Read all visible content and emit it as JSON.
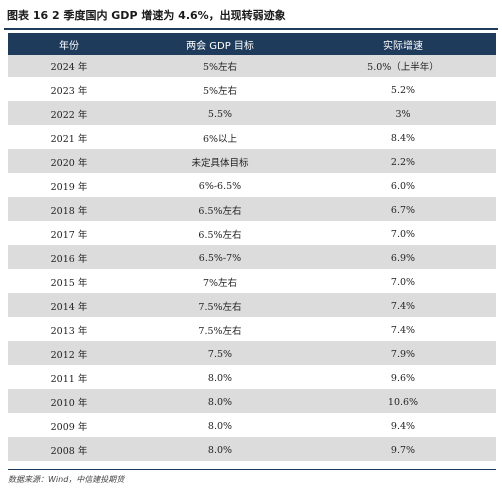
{
  "title": "图表  16 2 季度国内 GDP 增速为 4.6%，出现转弱迹象",
  "headers": [
    "年份",
    "两会 GDP 目标",
    "实际增速"
  ],
  "rows": [
    {
      "year": "2024 年",
      "target": "5%左右",
      "actual": "5.0%（上半年）"
    },
    {
      "year": "2023 年",
      "target": "5%左右",
      "actual": "5.2%"
    },
    {
      "year": "2022 年",
      "target": "5.5%",
      "actual": "3%"
    },
    {
      "year": "2021 年",
      "target": "6%以上",
      "actual": "8.4%"
    },
    {
      "year": "2020 年",
      "target": "未定具体目标",
      "actual": "2.2%"
    },
    {
      "year": "2019 年",
      "target": "6%-6.5%",
      "actual": "6.0%"
    },
    {
      "year": "2018 年",
      "target": "6.5%左右",
      "actual": "6.7%"
    },
    {
      "year": "2017 年",
      "target": "6.5%左右",
      "actual": "7.0%"
    },
    {
      "year": "2016 年",
      "target": "6.5%-7%",
      "actual": "6.9%"
    },
    {
      "year": "2015 年",
      "target": "7%左右",
      "actual": "7.0%"
    },
    {
      "year": "2014 年",
      "target": "7.5%左右",
      "actual": "7.4%"
    },
    {
      "year": "2013 年",
      "target": "7.5%左右",
      "actual": "7.4%"
    },
    {
      "year": "2012 年",
      "target": "7.5%",
      "actual": "7.9%"
    },
    {
      "year": "2011 年",
      "target": "8.0%",
      "actual": "9.6%"
    },
    {
      "year": "2010 年",
      "target": "8.0%",
      "actual": "10.6%"
    },
    {
      "year": "2009 年",
      "target": "8.0%",
      "actual": "9.4%"
    },
    {
      "year": "2008 年",
      "target": "8.0%",
      "actual": "9.7%"
    }
  ],
  "source": "数据来源：Wind，中信建投期货",
  "colors": {
    "header_bg": "#1f3b5c",
    "stripe": "#dcdcdc"
  }
}
